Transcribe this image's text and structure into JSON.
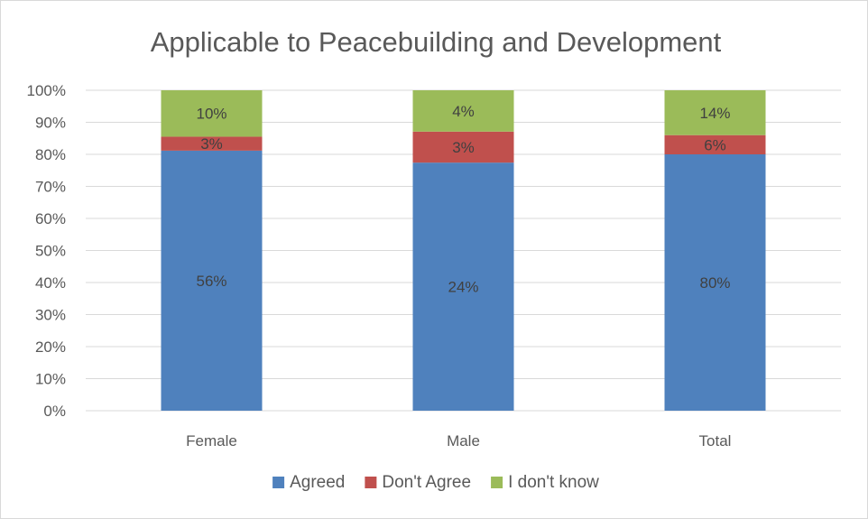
{
  "chart_data": {
    "type": "bar",
    "stacked": true,
    "percent_stacked": true,
    "title": "Applicable to Peacebuilding and Development",
    "categories": [
      "Female",
      "Male",
      "Total"
    ],
    "series": [
      {
        "name": "Agreed",
        "color": "#4f81bd",
        "values": [
          56,
          24,
          80
        ],
        "labels": [
          "56%",
          "24%",
          "80%"
        ]
      },
      {
        "name": "Don't Agree",
        "color": "#c0504d",
        "values": [
          3,
          3,
          6
        ],
        "labels": [
          "3%",
          "3%",
          "6%"
        ]
      },
      {
        "name": "I don't know",
        "color": "#9bbb59",
        "values": [
          10,
          4,
          14
        ],
        "labels": [
          "10%",
          "4%",
          "14%"
        ]
      }
    ],
    "y_ticks": [
      "0%",
      "10%",
      "20%",
      "30%",
      "40%",
      "50%",
      "60%",
      "70%",
      "80%",
      "90%",
      "100%"
    ],
    "ylim": [
      0,
      100
    ],
    "grid": true,
    "legend_position": "bottom"
  }
}
